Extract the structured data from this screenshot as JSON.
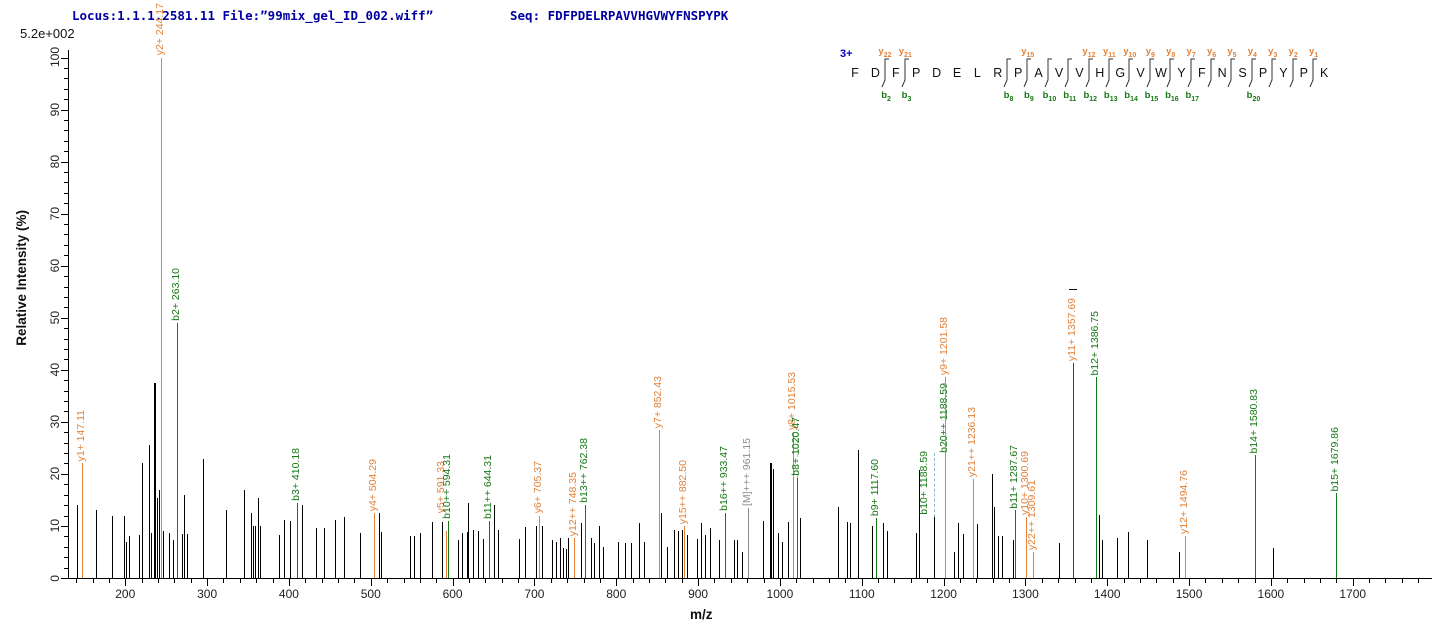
{
  "header": {
    "locus_file": "Locus:1.1.1.2581.11 File:”99mix_gel_ID_002.wiff”",
    "seq_label": "Seq: ",
    "sequence": "FDFPDELRPAVVHGVWYFNSPYPK"
  },
  "precursor_charge": "3+",
  "y_axis": {
    "title": "Relative  Intensity (%)",
    "max_label": "5.2e+002",
    "tick_min": 0,
    "tick_max": 100,
    "major_step": 10,
    "minor_step": 2
  },
  "x_axis": {
    "title": "m/z",
    "label_start": 200,
    "label_end": 1700,
    "label_step": 100,
    "minor_step": 20,
    "mz_axis_min": 130,
    "mz_axis_max": 1795
  },
  "colors": {
    "y_ion": "#E2823A",
    "b_ion": "#177817",
    "unmatched": "#000000",
    "precursor": "#8C8C8C",
    "overlap_peak": "#8B2222",
    "leader_blue": "#8FB8CC",
    "leader_gray": "#C0C0C0",
    "header_text": "#0000a0",
    "charge_text": "#0000cc"
  },
  "fragmentation": {
    "residues": [
      "F",
      "D",
      "F",
      "P",
      "D",
      "E",
      "L",
      "R",
      "P",
      "A",
      "V",
      "V",
      "H",
      "G",
      "V",
      "W",
      "Y",
      "F",
      "N",
      "S",
      "P",
      "Y",
      "P",
      "K"
    ],
    "cuts": [
      {
        "after": 2,
        "y": "y22",
        "b": "b2"
      },
      {
        "after": 3,
        "y": "y21",
        "b": "b3"
      },
      {
        "after": 8,
        "y": "",
        "b": "b8"
      },
      {
        "after": 9,
        "y": "y15",
        "b": "b9"
      },
      {
        "after": 10,
        "y": "",
        "b": "b10"
      },
      {
        "after": 11,
        "y": "",
        "b": "b11"
      },
      {
        "after": 12,
        "y": "y12",
        "b": "b12"
      },
      {
        "after": 13,
        "y": "y11",
        "b": "b13"
      },
      {
        "after": 14,
        "y": "y10",
        "b": "b14"
      },
      {
        "after": 15,
        "y": "y9",
        "b": "b15"
      },
      {
        "after": 16,
        "y": "y8",
        "b": "b16"
      },
      {
        "after": 17,
        "y": "y7",
        "b": "b17"
      },
      {
        "after": 18,
        "y": "y6",
        "b": ""
      },
      {
        "after": 19,
        "y": "y5",
        "b": ""
      },
      {
        "after": 20,
        "y": "y4",
        "b": "b20"
      },
      {
        "after": 21,
        "y": "y3",
        "b": ""
      },
      {
        "after": 22,
        "y": "y2",
        "b": ""
      },
      {
        "after": 23,
        "y": "y1",
        "b": ""
      }
    ]
  },
  "chart_data": {
    "type": "bar",
    "subtype": "ms2-spectrum-peaks",
    "xlabel": "m/z",
    "ylabel": "Relative  Intensity (%)",
    "xlim": [
      130,
      1795
    ],
    "ylim": [
      0,
      100
    ],
    "peaks": [
      {
        "mz": 141,
        "h": 14,
        "c": "k"
      },
      {
        "mz": 147.11,
        "h": 22,
        "c": "y",
        "l": "y1+ 147.11"
      },
      {
        "mz": 164,
        "h": 13,
        "c": "k"
      },
      {
        "mz": 183.5,
        "h": 12,
        "c": "k"
      },
      {
        "mz": 198.6,
        "h": 12,
        "c": "k"
      },
      {
        "mz": 201,
        "h": 7,
        "c": "k"
      },
      {
        "mz": 205,
        "h": 8,
        "c": "k"
      },
      {
        "mz": 217,
        "h": 8.3,
        "c": "k"
      },
      {
        "mz": 220,
        "h": 22,
        "c": "k"
      },
      {
        "mz": 229,
        "h": 25.5,
        "c": "k"
      },
      {
        "mz": 231.5,
        "h": 8.6,
        "c": "k"
      },
      {
        "mz": 236.5,
        "h": 37.5,
        "c": "k",
        "w": 2
      },
      {
        "mz": 238.5,
        "h": 15.4,
        "c": "k"
      },
      {
        "mz": 241,
        "h": 17,
        "c": "k"
      },
      {
        "mz": 244.17,
        "h": 100,
        "c": "y",
        "l": "y2+ 244.17"
      },
      {
        "mz": 246,
        "h": 9,
        "c": "k"
      },
      {
        "mz": 253.5,
        "h": 8.6,
        "c": "k"
      },
      {
        "mz": 258.5,
        "h": 7.3,
        "c": "k"
      },
      {
        "mz": 263.1,
        "h": 49,
        "c": "b",
        "l": "b2+ 263.10"
      },
      {
        "mz": 269.5,
        "h": 8.5,
        "c": "k"
      },
      {
        "mz": 272,
        "h": 16,
        "c": "k"
      },
      {
        "mz": 276,
        "h": 8.5,
        "c": "k"
      },
      {
        "mz": 295,
        "h": 22.8,
        "c": "k"
      },
      {
        "mz": 323,
        "h": 13,
        "c": "k"
      },
      {
        "mz": 345,
        "h": 17,
        "c": "k"
      },
      {
        "mz": 354,
        "h": 12.5,
        "c": "k"
      },
      {
        "mz": 356,
        "h": 10,
        "c": "k"
      },
      {
        "mz": 359,
        "h": 10,
        "c": "k"
      },
      {
        "mz": 362,
        "h": 15.3,
        "c": "k"
      },
      {
        "mz": 365,
        "h": 10,
        "c": "k"
      },
      {
        "mz": 388,
        "h": 8.2,
        "c": "k"
      },
      {
        "mz": 394,
        "h": 11.1,
        "c": "k"
      },
      {
        "mz": 401,
        "h": 11,
        "c": "k"
      },
      {
        "mz": 410.18,
        "h": 14.5,
        "c": "b",
        "l": "b3+ 410.18"
      },
      {
        "mz": 416,
        "h": 14,
        "c": "k"
      },
      {
        "mz": 433,
        "h": 9.6,
        "c": "k"
      },
      {
        "mz": 443,
        "h": 9.6,
        "c": "k"
      },
      {
        "mz": 456,
        "h": 11.1,
        "c": "k"
      },
      {
        "mz": 467,
        "h": 11.7,
        "c": "k"
      },
      {
        "mz": 487,
        "h": 8.6,
        "c": "k"
      },
      {
        "mz": 504.29,
        "h": 12.5,
        "c": "y",
        "l": "y4+ 504.29"
      },
      {
        "mz": 510,
        "h": 12.5,
        "c": "k"
      },
      {
        "mz": 513,
        "h": 8.8,
        "c": "k"
      },
      {
        "mz": 548,
        "h": 8,
        "c": "k"
      },
      {
        "mz": 553,
        "h": 8,
        "c": "k"
      },
      {
        "mz": 560,
        "h": 8.6,
        "c": "k"
      },
      {
        "mz": 575,
        "h": 10.7,
        "c": "k"
      },
      {
        "mz": 587,
        "h": 10.7,
        "c": "k"
      },
      {
        "mz": 591.33,
        "h": 9,
        "c": "y",
        "l": "y5+ 591.33",
        "dx": -4,
        "dy": 16
      },
      {
        "mz": 594.31,
        "h": 11,
        "c": "b",
        "l": "b10++ 594.31"
      },
      {
        "mz": 607,
        "h": 7.3,
        "c": "k"
      },
      {
        "mz": 611,
        "h": 8.6,
        "c": "k"
      },
      {
        "mz": 617,
        "h": 8.8,
        "c": "k"
      },
      {
        "mz": 619,
        "h": 14.4,
        "c": "k"
      },
      {
        "mz": 625,
        "h": 9.2,
        "c": "k"
      },
      {
        "mz": 631,
        "h": 9,
        "c": "k"
      },
      {
        "mz": 637,
        "h": 7.5,
        "c": "k"
      },
      {
        "mz": 644.31,
        "h": 11,
        "c": "b",
        "l": "b11++ 644.31"
      },
      {
        "mz": 650,
        "h": 14,
        "c": "k"
      },
      {
        "mz": 656,
        "h": 9.2,
        "c": "k"
      },
      {
        "mz": 681,
        "h": 7.5,
        "c": "k"
      },
      {
        "mz": 689,
        "h": 9.8,
        "c": "k"
      },
      {
        "mz": 702,
        "h": 10,
        "c": "k"
      },
      {
        "mz": 705.37,
        "h": 12,
        "c": "y",
        "l": "y6+ 705.37"
      },
      {
        "mz": 709,
        "h": 10,
        "c": "k"
      },
      {
        "mz": 722,
        "h": 7.3,
        "c": "k"
      },
      {
        "mz": 726,
        "h": 7,
        "c": "k"
      },
      {
        "mz": 731,
        "h": 7.6,
        "c": "k"
      },
      {
        "mz": 735,
        "h": 5.7,
        "c": "k"
      },
      {
        "mz": 738,
        "h": 5.6,
        "c": "k"
      },
      {
        "mz": 741,
        "h": 7.6,
        "c": "k"
      },
      {
        "mz": 748.35,
        "h": 7.6,
        "c": "y",
        "l": "y12++ 748.35"
      },
      {
        "mz": 757,
        "h": 10.5,
        "c": "k"
      },
      {
        "mz": 762.38,
        "h": 14,
        "c": "b",
        "l": "b13++ 762.38"
      },
      {
        "mz": 769,
        "h": 7.7,
        "c": "k"
      },
      {
        "mz": 773,
        "h": 6.7,
        "c": "k"
      },
      {
        "mz": 779,
        "h": 10,
        "c": "k"
      },
      {
        "mz": 784,
        "h": 6,
        "c": "k"
      },
      {
        "mz": 802,
        "h": 7,
        "c": "k"
      },
      {
        "mz": 811,
        "h": 6.8,
        "c": "k"
      },
      {
        "mz": 818,
        "h": 6.8,
        "c": "k"
      },
      {
        "mz": 828,
        "h": 10.5,
        "c": "k"
      },
      {
        "mz": 834,
        "h": 7,
        "c": "k"
      },
      {
        "mz": 852.43,
        "h": 28.4,
        "c": "y",
        "l": "y7+ 852.43"
      },
      {
        "mz": 855,
        "h": 12.5,
        "c": "k"
      },
      {
        "mz": 862,
        "h": 6,
        "c": "k"
      },
      {
        "mz": 870,
        "h": 9.2,
        "c": "k"
      },
      {
        "mz": 875,
        "h": 9,
        "c": "k"
      },
      {
        "mz": 880,
        "h": 9.2,
        "c": "k"
      },
      {
        "mz": 882.5,
        "h": 10,
        "c": "y",
        "l": "y15++ 882.50"
      },
      {
        "mz": 887,
        "h": 8.3,
        "c": "k"
      },
      {
        "mz": 899,
        "h": 7.5,
        "c": "k"
      },
      {
        "mz": 904,
        "h": 10.5,
        "c": "k"
      },
      {
        "mz": 909,
        "h": 8.3,
        "c": "k"
      },
      {
        "mz": 914,
        "h": 9.6,
        "c": "k"
      },
      {
        "mz": 926,
        "h": 7.3,
        "c": "k"
      },
      {
        "mz": 933.47,
        "h": 12.5,
        "c": "b",
        "l": "b16++ 933.47"
      },
      {
        "mz": 944,
        "h": 7.3,
        "c": "k"
      },
      {
        "mz": 947,
        "h": 7.3,
        "c": "k"
      },
      {
        "mz": 954,
        "h": 5,
        "c": "k"
      },
      {
        "mz": 961.15,
        "h": 13.4,
        "c": "g",
        "l": "[M]+++ 961.15"
      },
      {
        "mz": 979.5,
        "h": 11,
        "c": "k"
      },
      {
        "mz": 989,
        "h": 22,
        "c": "k",
        "w": 2
      },
      {
        "mz": 992,
        "h": 21,
        "c": "k"
      },
      {
        "mz": 998,
        "h": 8.6,
        "c": "k"
      },
      {
        "mz": 1002,
        "h": 7,
        "c": "k"
      },
      {
        "mz": 1010,
        "h": 10.7,
        "c": "k"
      },
      {
        "mz": 1015.53,
        "h": 28,
        "c": "y",
        "l": "y8+ 1015.53"
      },
      {
        "mz": 1020.47,
        "h": 19.2,
        "c": "b",
        "l": "b8+ 1020.47",
        "leader": [
          27.8,
          19.2,
          "leader_gray"
        ]
      },
      {
        "mz": 1025,
        "h": 11.5,
        "c": "k"
      },
      {
        "mz": 1071,
        "h": 13.6,
        "c": "k"
      },
      {
        "mz": 1082,
        "h": 10.7,
        "c": "k"
      },
      {
        "mz": 1086,
        "h": 10.5,
        "c": "k"
      },
      {
        "mz": 1095,
        "h": 24.6,
        "c": "k"
      },
      {
        "mz": 1112,
        "h": 10,
        "c": "k"
      },
      {
        "mz": 1117.6,
        "h": 11.5,
        "c": "b",
        "l": "b9+ 1117.60"
      },
      {
        "mz": 1126,
        "h": 10.5,
        "c": "k"
      },
      {
        "mz": 1131,
        "h": 9,
        "c": "k"
      },
      {
        "mz": 1166,
        "h": 8.6,
        "c": "k"
      },
      {
        "mz": 1170,
        "h": 20.7,
        "c": "k"
      },
      {
        "mz": 1188.59,
        "h": 11.7,
        "c": "k",
        "l": "b10+ 1188.59",
        "lc": "b",
        "dx": -9,
        "leader": [
          24,
          11.7,
          "leader_blue"
        ],
        "l2": "b20++ 1188.59",
        "l2pct": 24
      },
      {
        "mz": 1201.58,
        "h": 38.6,
        "c": "y",
        "l": "y9+ 1201.58"
      },
      {
        "mz": 1213,
        "h": 5,
        "c": "k"
      },
      {
        "mz": 1218,
        "h": 10.6,
        "c": "k"
      },
      {
        "mz": 1224,
        "h": 8.5,
        "c": "k"
      },
      {
        "mz": 1236.13,
        "h": 19,
        "c": "y",
        "l": "y21++ 1236.13"
      },
      {
        "mz": 1241,
        "h": 10.4,
        "c": "k"
      },
      {
        "mz": 1259,
        "h": 20,
        "c": "k"
      },
      {
        "mz": 1262,
        "h": 13.6,
        "c": "k"
      },
      {
        "mz": 1267,
        "h": 8,
        "c": "k"
      },
      {
        "mz": 1271,
        "h": 8,
        "c": "k"
      },
      {
        "mz": 1285,
        "h": 7.3,
        "c": "k"
      },
      {
        "mz": 1287.67,
        "h": 13,
        "c": "b",
        "l": "b11+ 1287.67"
      },
      {
        "mz": 1300.69,
        "h": 11.7,
        "c": "y",
        "l": "y10+ 1300.69"
      },
      {
        "mz": 1309.61,
        "h": 5,
        "c": "y",
        "l": "y22++ 1309.61"
      },
      {
        "mz": 1341,
        "h": 6.7,
        "c": "k"
      },
      {
        "mz": 1357.69,
        "h": 41.3,
        "c": "m",
        "l": "y11+ 1357.69",
        "lc": "y",
        "tick": 1
      },
      {
        "mz": 1386.75,
        "h": 38.6,
        "c": "b",
        "l": "b12+ 1386.75"
      },
      {
        "mz": 1390,
        "h": 12.1,
        "c": "k"
      },
      {
        "mz": 1394,
        "h": 7.3,
        "c": "k"
      },
      {
        "mz": 1412,
        "h": 7.7,
        "c": "k"
      },
      {
        "mz": 1425,
        "h": 8.8,
        "c": "k"
      },
      {
        "mz": 1448,
        "h": 7.3,
        "c": "k"
      },
      {
        "mz": 1488,
        "h": 5,
        "c": "k"
      },
      {
        "mz": 1494.76,
        "h": 8,
        "c": "y",
        "l": "y12+ 1494.76"
      },
      {
        "mz": 1580.83,
        "h": 23.6,
        "c": "b",
        "l": "b14+ 1580.83"
      },
      {
        "mz": 1602,
        "h": 5.8,
        "c": "k"
      },
      {
        "mz": 1679.86,
        "h": 16.3,
        "c": "b",
        "l": "b15+ 1679.86"
      }
    ]
  }
}
